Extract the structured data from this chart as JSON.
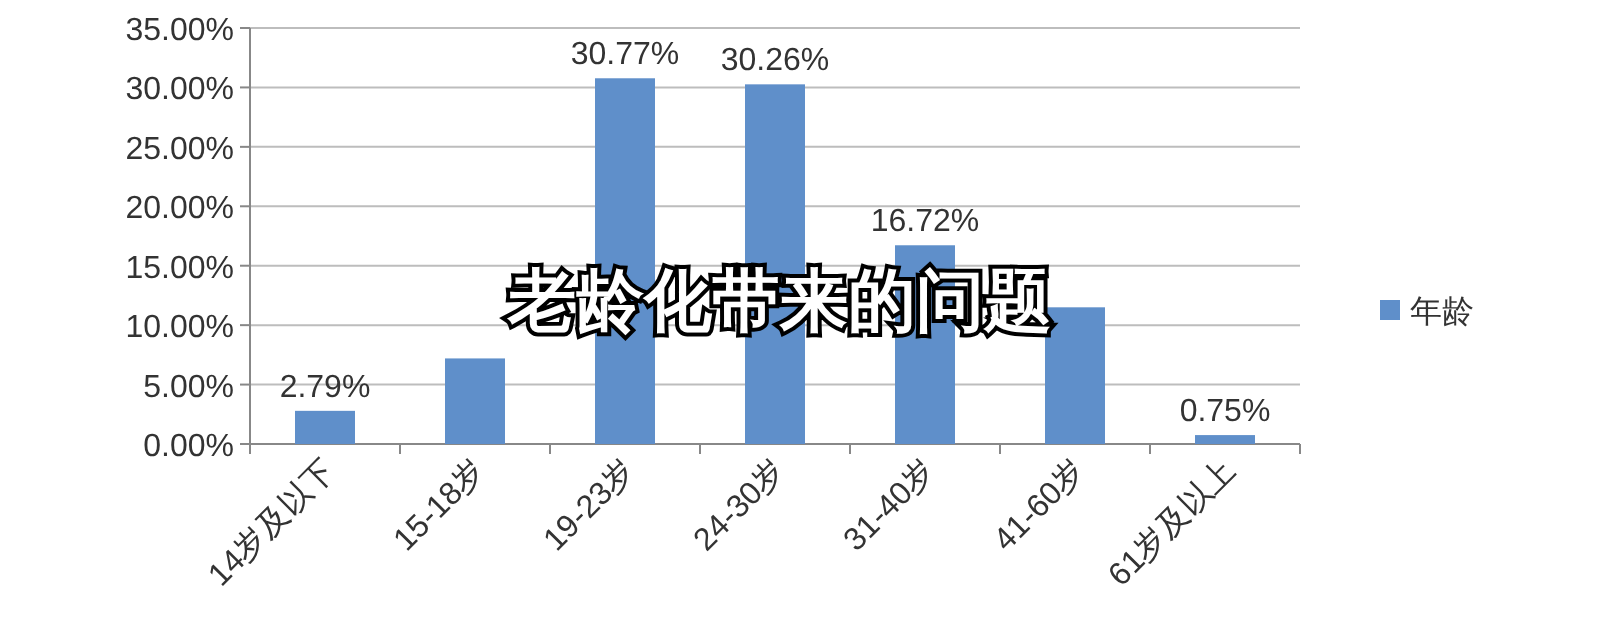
{
  "chart_data": {
    "type": "bar",
    "title": "老龄化带来的问题",
    "categories": [
      "14岁及以下",
      "15-18岁",
      "19-23岁",
      "24-30岁",
      "31-40岁",
      "41-60岁",
      "61岁及以上"
    ],
    "series": [
      {
        "name": "年龄",
        "color": "#5f8fca",
        "values": [
          2.79,
          7.2,
          30.77,
          30.26,
          16.72,
          11.5,
          0.75
        ],
        "value_labels": [
          "2.79%",
          null,
          "30.77%",
          "30.26%",
          "16.72%",
          null,
          "0.75%"
        ]
      }
    ],
    "ylim": [
      0,
      35
    ],
    "yticks": [
      {
        "value": 0,
        "label": "0.00%"
      },
      {
        "value": 5,
        "label": "5.00%"
      },
      {
        "value": 10,
        "label": "10.00%"
      },
      {
        "value": 15,
        "label": "15.00%"
      },
      {
        "value": 20,
        "label": "20.00%"
      },
      {
        "value": 25,
        "label": "25.00%"
      },
      {
        "value": 30,
        "label": "30.00%"
      },
      {
        "value": 35,
        "label": "35.00%"
      }
    ],
    "grid": "y",
    "legend": "right"
  }
}
